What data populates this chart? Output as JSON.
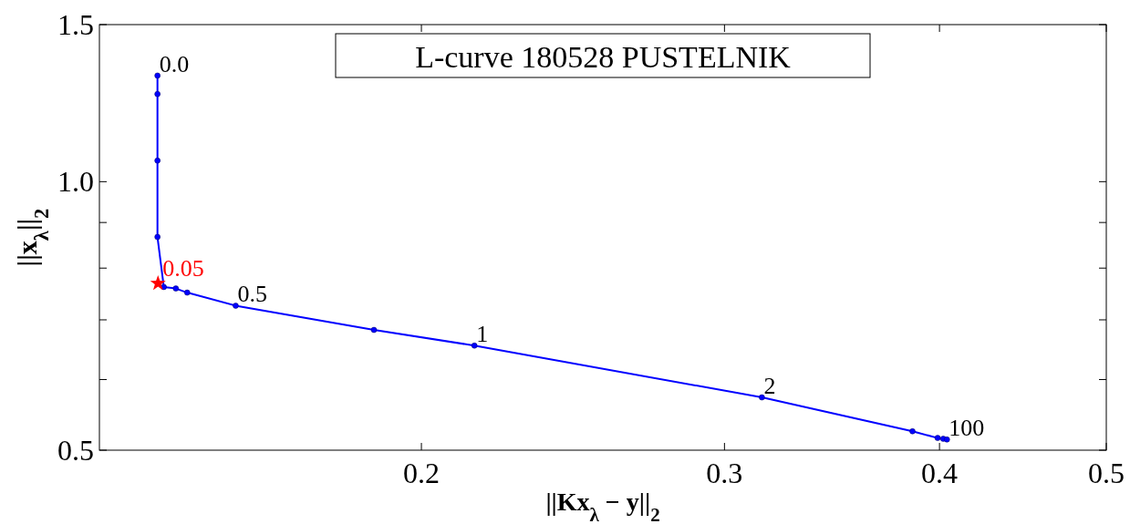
{
  "chart_data": {
    "type": "line",
    "title": "L-curve 180528 PUSTELNIK",
    "xlabel": "||Kx$_{λ}$ − y||$_{2}$",
    "ylabel": "||x$_{λ}$||$_{2}$",
    "log": "xy",
    "grid": false,
    "marker": "circle",
    "line_style": "solid",
    "xlim": [
      0.13,
      0.5
    ],
    "xticks": [
      0.2,
      0.3,
      0.4,
      0.5
    ],
    "ylim": [
      0.5,
      1.5
    ],
    "yticks": [
      0.5,
      {
        "value": 0.6,
        "label": null
      },
      {
        "value": 0.7,
        "label": null
      },
      {
        "value": 0.8,
        "label": null
      },
      {
        "value": 0.9,
        "label": null
      },
      {
        "value": 1,
        "label": "1.0"
      },
      1.5
    ],
    "series": [
      {
        "color": "#0000ff",
        "x": [
          0.1405,
          0.1405,
          0.1405,
          0.1405,
          0.1417,
          0.144,
          0.1462,
          0.156,
          0.1877,
          0.2147,
          0.3154,
          0.3858,
          0.399,
          0.402,
          0.404
        ],
        "values": [
          1.315,
          1.254,
          1.056,
          0.867,
          0.762,
          0.759,
          0.751,
          0.726,
          0.682,
          0.655,
          0.573,
          0.525,
          0.516,
          0.515,
          0.514
        ]
      },
      {
        "type": "scatter",
        "name": "0.05",
        "color": "#ff0000",
        "marker": "star",
        "x": [
          0.1406
        ],
        "values": [
          0.769
        ]
      }
    ],
    "annotations": [
      {
        "text": "0.0",
        "x": 0.1405,
        "y": 1.315
      },
      {
        "text": "0.5",
        "x": 0.156,
        "y": 0.726
      },
      {
        "text": "1",
        "x": 0.2147,
        "y": 0.655
      },
      {
        "text": "2",
        "x": 0.3154,
        "y": 0.573
      },
      {
        "text": "100",
        "x": 0.404,
        "y": 0.514
      }
    ]
  }
}
